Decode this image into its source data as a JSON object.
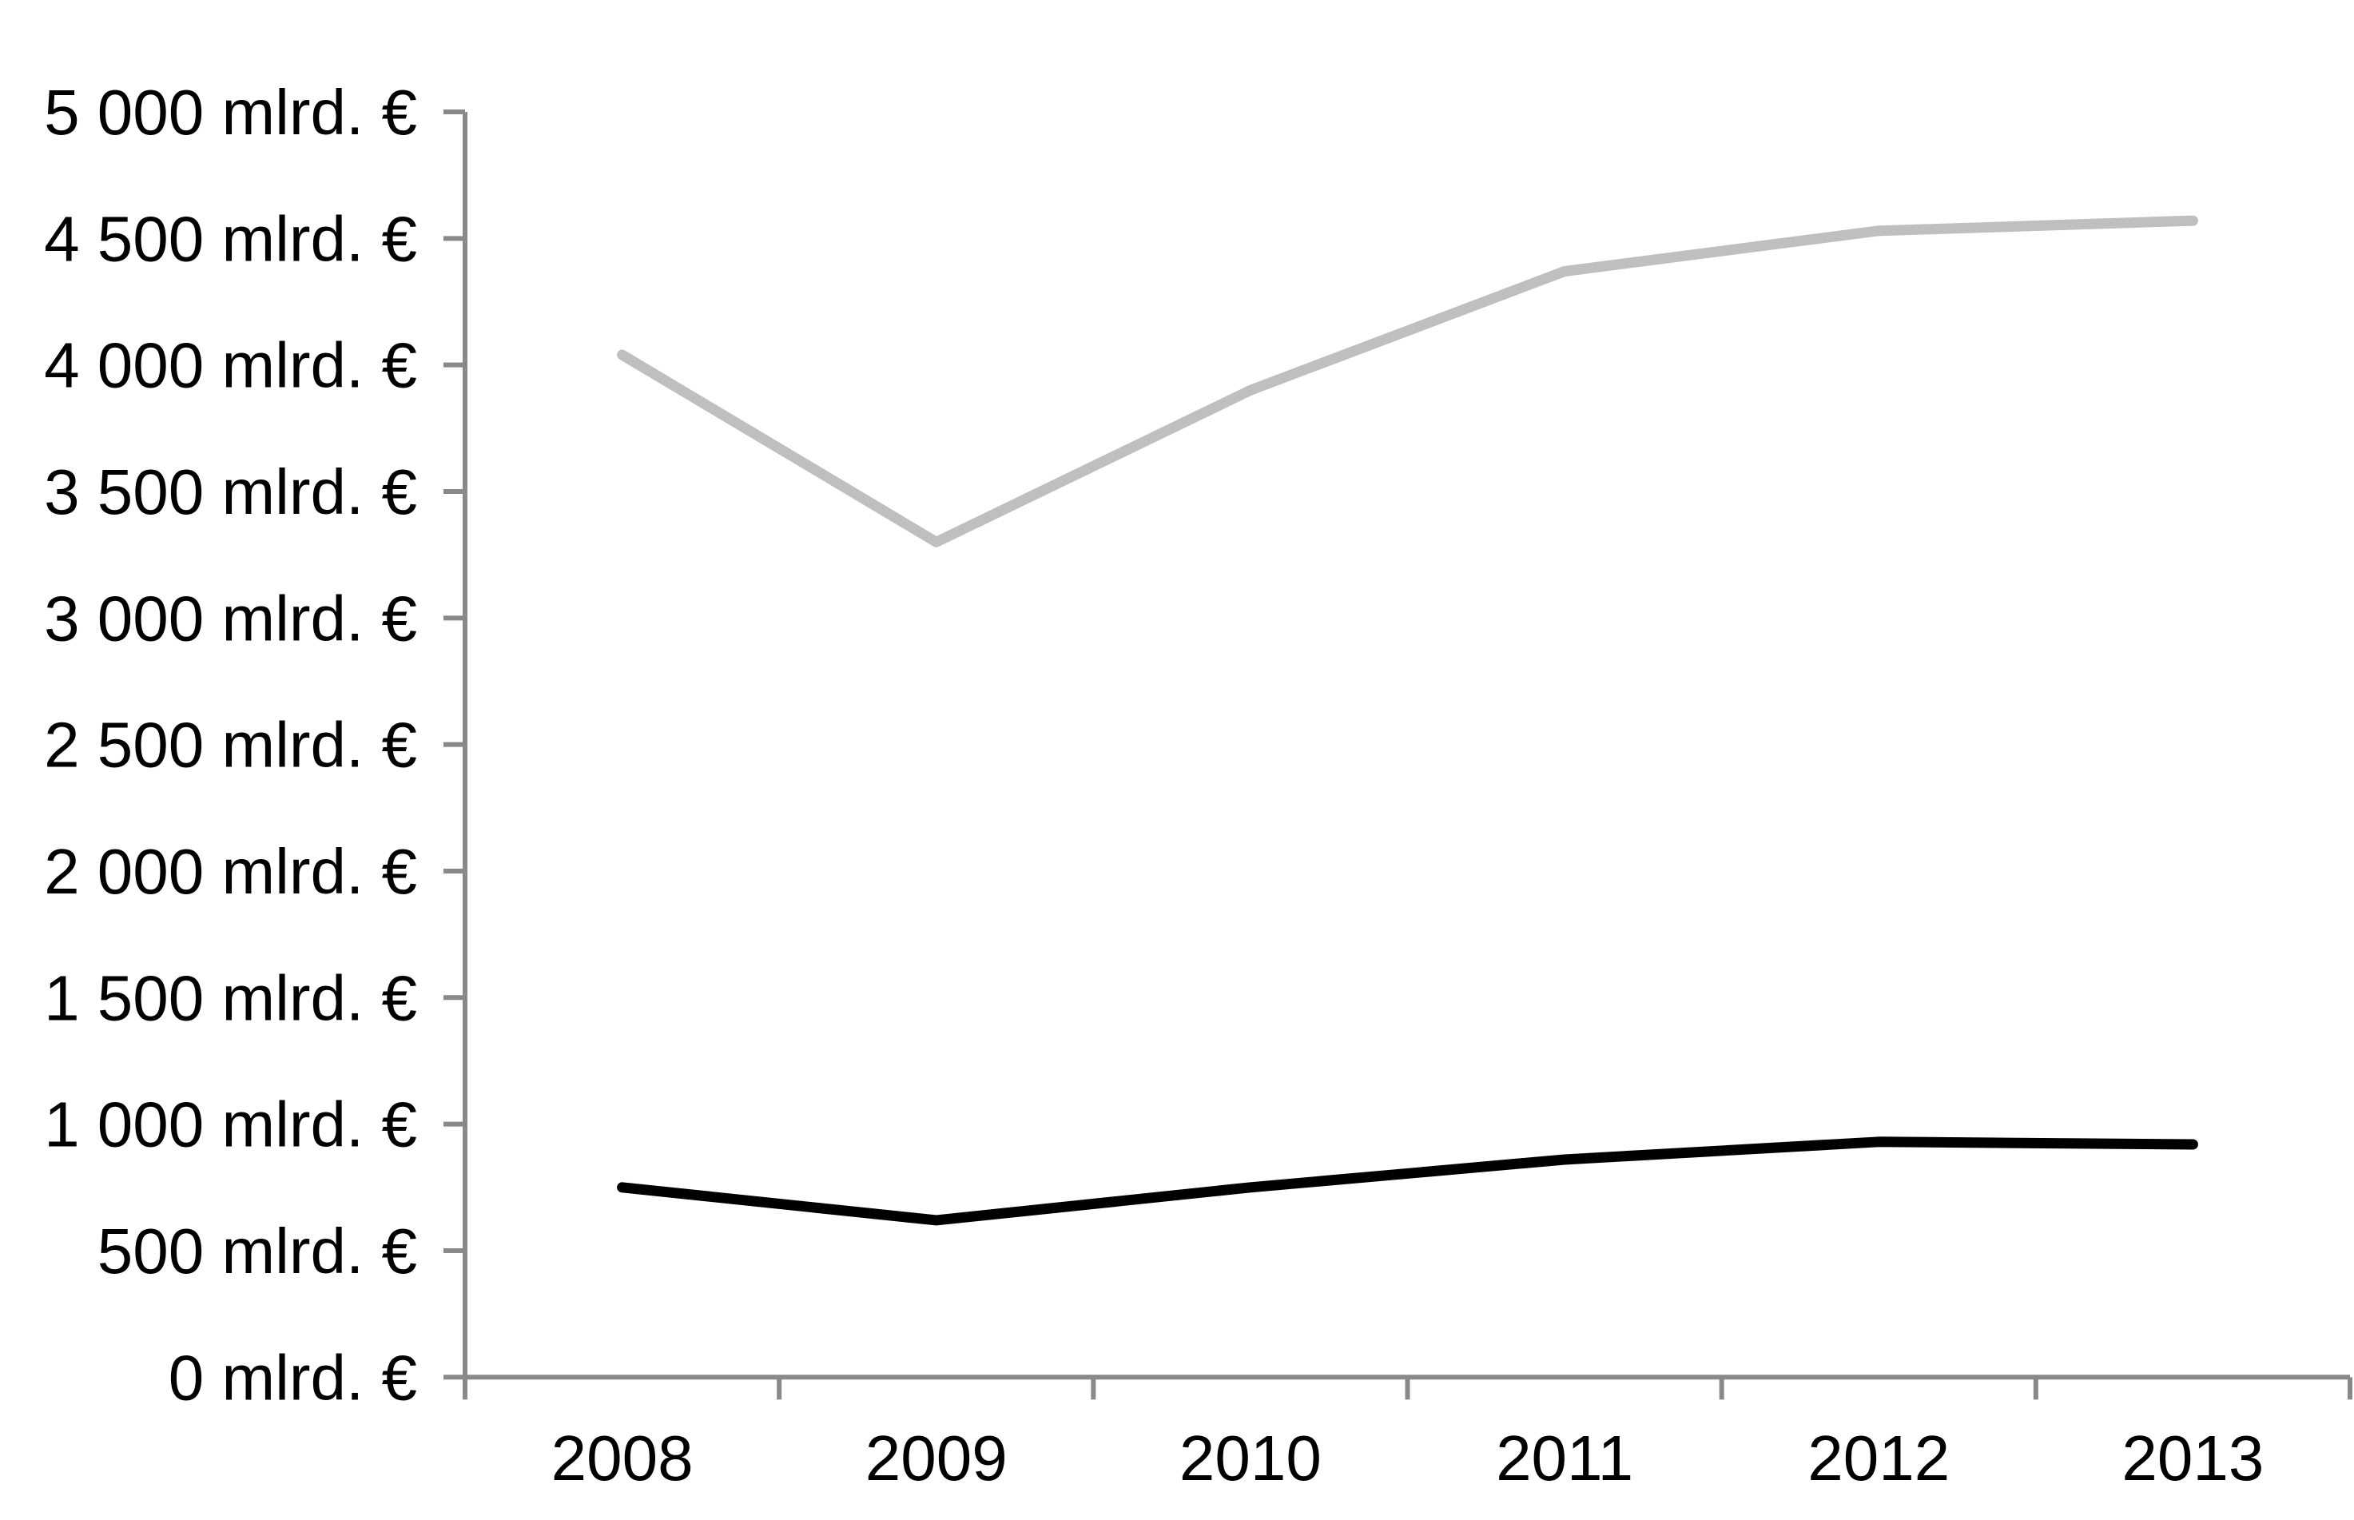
{
  "chart_data": {
    "type": "line",
    "title": "",
    "xlabel": "",
    "ylabel": "",
    "unit": "mlrd. €",
    "categories": [
      "2008",
      "2009",
      "2010",
      "2011",
      "2012",
      "2013"
    ],
    "series": [
      {
        "name": "upper-gray-series",
        "color": "#bfbfbf",
        "values": [
          4040,
          3300,
          3900,
          4370,
          4530,
          4570
        ]
      },
      {
        "name": "lower-black-series",
        "color": "#000000",
        "values": [
          750,
          620,
          750,
          860,
          930,
          920
        ]
      }
    ],
    "ylim": [
      0,
      5000
    ],
    "y_tick_step": 500,
    "y_tick_labels": [
      "0 mlrd. €",
      "500 mlrd. €",
      "1 000 mlrd. €",
      "1 500 mlrd. €",
      "2 000 mlrd. €",
      "2 500 mlrd. €",
      "3 000 mlrd. €",
      "3 500 mlrd. €",
      "4 000 mlrd. €",
      "4 500 mlrd. €",
      "5 000 mlrd. €"
    ],
    "grid": false,
    "legend": "none",
    "axis_color": "#898989",
    "text_color": "#000000",
    "background": "#ffffff"
  }
}
